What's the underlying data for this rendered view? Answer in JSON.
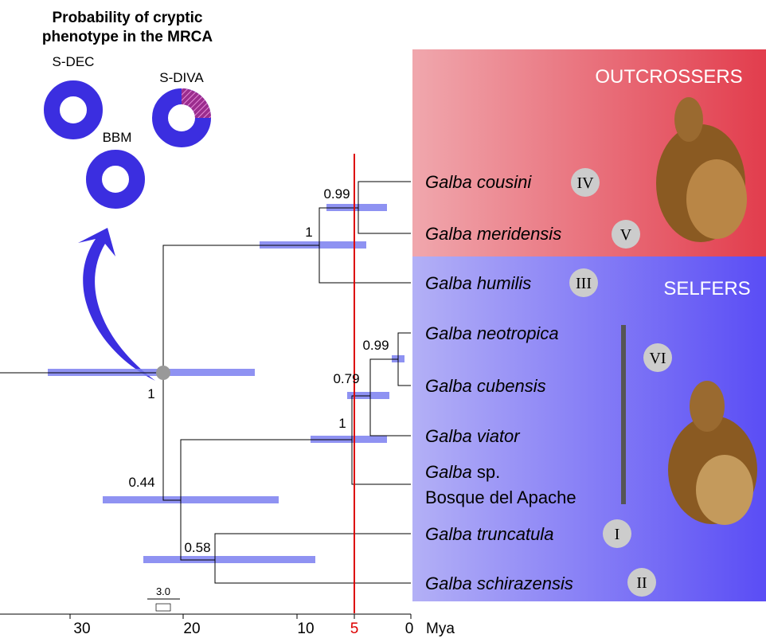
{
  "title": [
    "Probability of cryptic",
    "phenotype in the MRCA"
  ],
  "pies": [
    "S-DEC",
    "S-DIVA",
    "BBM"
  ],
  "groups": [
    "OUTCROSSERS",
    "SELFERS"
  ],
  "taxa": [
    {
      "name": "Galba cousini"
    },
    {
      "name": "Galba meridensis"
    },
    {
      "name": "Galba humilis"
    },
    {
      "name": "Galba neotropica"
    },
    {
      "name": "Galba cubensis"
    },
    {
      "name": "Galba viator"
    },
    {
      "name": "Galba",
      "qualifier": "sp.",
      "locality": "Bosque del Apache"
    },
    {
      "name": "Galba truncatula"
    },
    {
      "name": "Galba schirazensis"
    }
  ],
  "clades": [
    "IV",
    "V",
    "III",
    "VI",
    "I",
    "II"
  ],
  "supports": [
    0.99,
    1,
    0.99,
    0.79,
    1,
    1,
    0.44,
    0.58
  ],
  "scale_bar": "3.0",
  "axis": {
    "ticks": [
      30,
      20,
      10,
      5,
      0
    ],
    "unit": "Mya"
  }
}
